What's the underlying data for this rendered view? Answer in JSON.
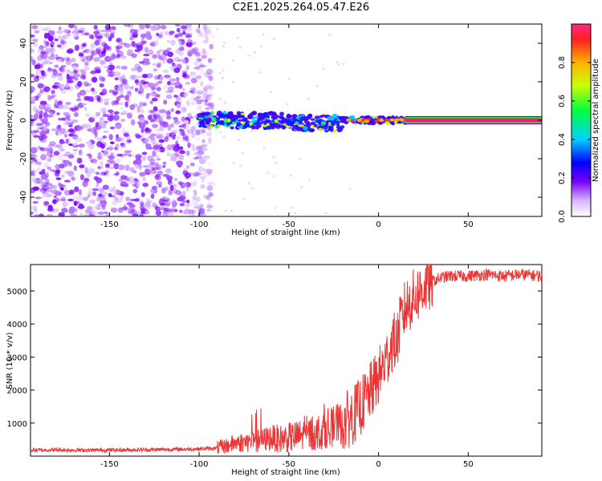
{
  "title": "C2E1.2025.264.05.47.E26",
  "chart_data": [
    {
      "type": "heatmap",
      "xlabel": "Height of straight line (km)",
      "ylabel": "Frequency (Hz)",
      "xlim": [
        -194,
        91
      ],
      "ylim": [
        -50,
        50
      ],
      "xticks": [
        -150,
        -100,
        -50,
        0,
        50
      ],
      "yticks": [
        -40,
        -20,
        0,
        20,
        40
      ],
      "grid": false,
      "description_values": {
        "noise_region_x": [
          -194,
          -92
        ],
        "signal_band_frequency": 0,
        "colorscale_range": [
          0,
          1
        ]
      },
      "colorbar": {
        "label": "Normalized spectral amplitude",
        "range": [
          0.0,
          1.0
        ],
        "ticks": [
          0.0,
          0.2,
          0.4,
          0.6,
          0.8
        ]
      }
    },
    {
      "type": "line",
      "xlabel": "Height of straight line (km)",
      "ylabel": "SNR (10 * v/v)",
      "xlim": [
        -194,
        91
      ],
      "ylim": [
        0,
        5800
      ],
      "xticks": [
        -150,
        -100,
        -50,
        0,
        50
      ],
      "yticks": [
        1000,
        2000,
        3000,
        4000,
        5000
      ],
      "series": [
        {
          "color": "#ee3333",
          "x": [
            -194,
            -180,
            -160,
            -140,
            -120,
            -100,
            -90,
            -85,
            -80,
            -75,
            -70,
            -65,
            -60,
            -55,
            -50,
            -45,
            -40,
            -35,
            -30,
            -25,
            -20,
            -15,
            -10,
            -5,
            0,
            5,
            8,
            10,
            12,
            15,
            20,
            25,
            30,
            35,
            40,
            50,
            60,
            70,
            80,
            91
          ],
          "y": [
            180,
            190,
            180,
            190,
            200,
            220,
            240,
            300,
            400,
            420,
            450,
            480,
            560,
            520,
            560,
            600,
            650,
            700,
            800,
            900,
            1000,
            1200,
            1500,
            1900,
            2400,
            3000,
            3500,
            3400,
            4000,
            4500,
            4800,
            5100,
            5300,
            5400,
            5450,
            5450,
            5500,
            5450,
            5500,
            5450
          ]
        }
      ]
    }
  ]
}
